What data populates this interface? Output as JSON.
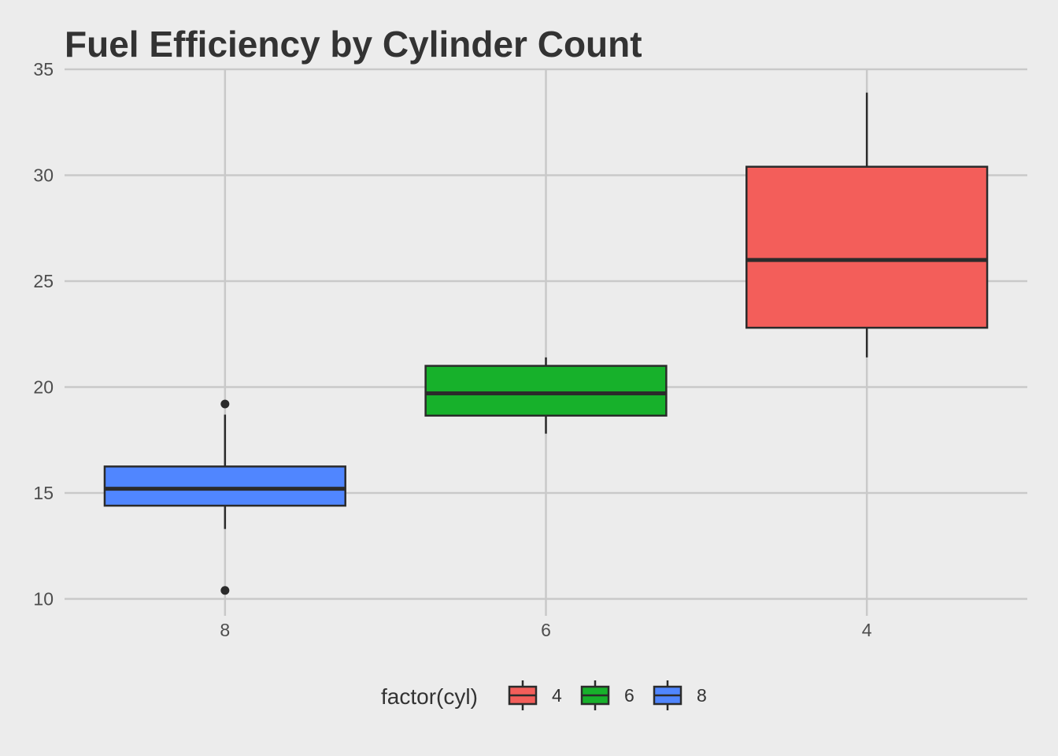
{
  "chart_data": {
    "type": "box",
    "title": "Fuel Efficiency by Cylinder Count",
    "xlabel": "",
    "ylabel": "",
    "ylim": [
      9.2,
      35
    ],
    "yticks": [
      10,
      15,
      20,
      25,
      30,
      35
    ],
    "categories": [
      "8",
      "6",
      "4"
    ],
    "grid": true,
    "legend": {
      "title": "factor(cyl)",
      "placement": "bottom",
      "entries": [
        "4",
        "6",
        "8"
      ]
    },
    "colors": {
      "4": "#f35e5a",
      "6": "#17b12b",
      "8": "#5086ff",
      "outline": "#2b2b2b",
      "grid": "#c9c9c9",
      "background": "#ececec"
    },
    "series": [
      {
        "category": "8",
        "group": "8",
        "min": 13.3,
        "q1": 14.4,
        "median": 15.2,
        "q3": 16.25,
        "max": 18.7,
        "outliers": [
          10.4,
          19.2
        ]
      },
      {
        "category": "6",
        "group": "6",
        "min": 17.8,
        "q1": 18.65,
        "median": 19.7,
        "q3": 21.0,
        "max": 21.4,
        "outliers": []
      },
      {
        "category": "4",
        "group": "4",
        "min": 21.4,
        "q1": 22.8,
        "median": 26.0,
        "q3": 30.4,
        "max": 33.9,
        "outliers": []
      }
    ]
  }
}
